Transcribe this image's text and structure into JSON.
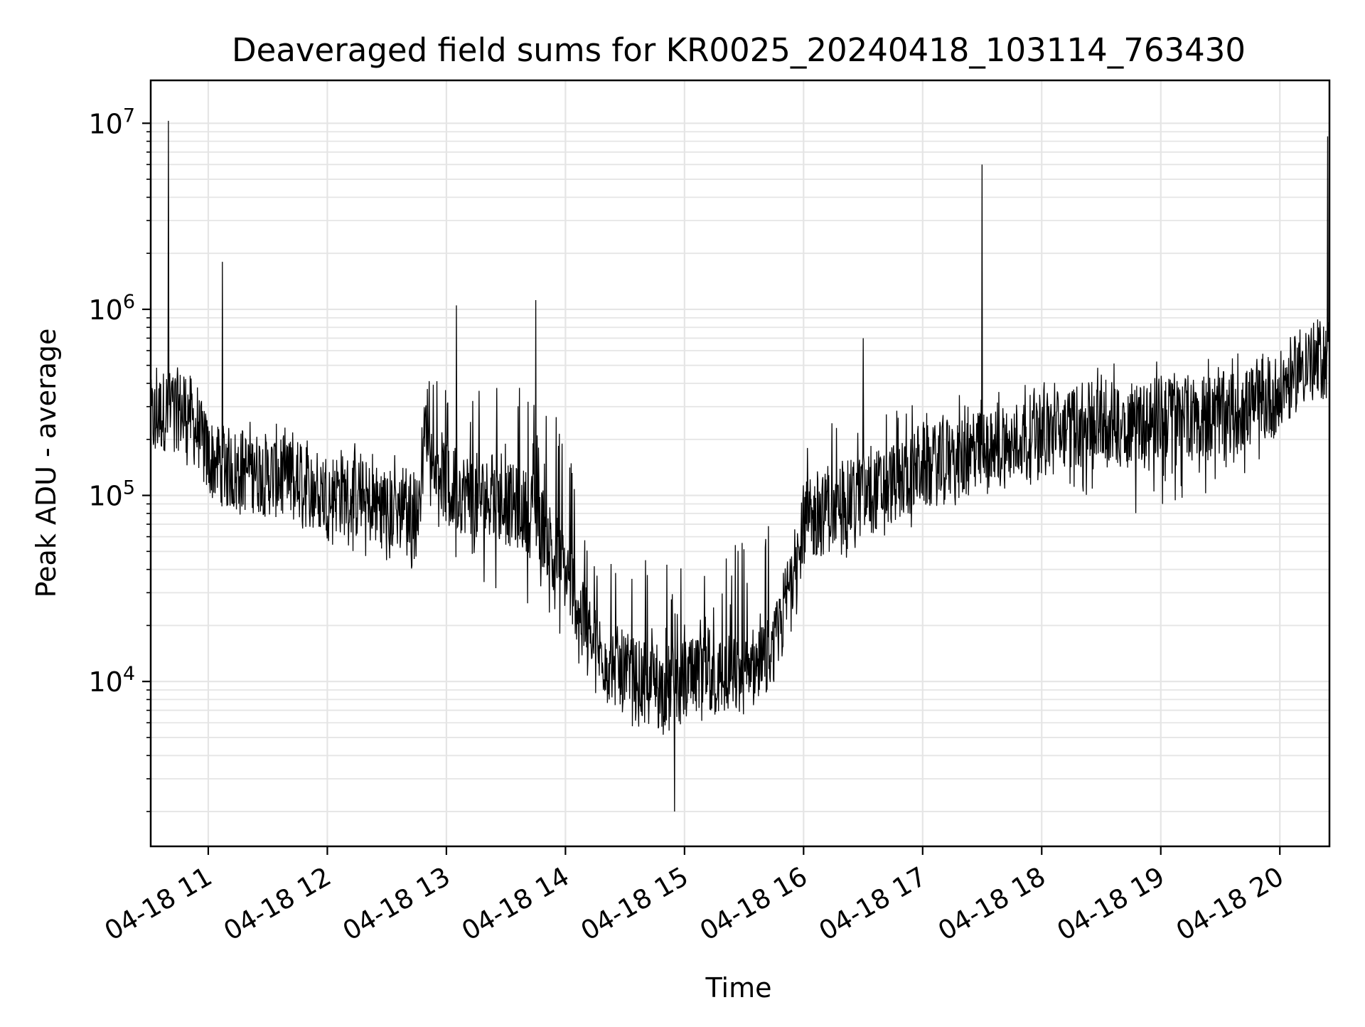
{
  "chart_data": {
    "type": "line",
    "title": "Deaveraged field sums for KR0025_20240418_103114_763430",
    "xlabel": "Time",
    "ylabel": "Peak ADU - average",
    "yscale": "log",
    "ylim": [
      1300,
      17000000
    ],
    "xlim": [
      "04-18 10:31",
      "04-18 20:25"
    ],
    "grid": true,
    "line_color": "#000000",
    "grid_color": "#e5e5e5",
    "x_ticks": [
      {
        "label": "04-18 11",
        "value": "04-18 11:00"
      },
      {
        "label": "04-18 12",
        "value": "04-18 12:00"
      },
      {
        "label": "04-18 13",
        "value": "04-18 13:00"
      },
      {
        "label": "04-18 14",
        "value": "04-18 14:00"
      },
      {
        "label": "04-18 15",
        "value": "04-18 15:00"
      },
      {
        "label": "04-18 16",
        "value": "04-18 16:00"
      },
      {
        "label": "04-18 17",
        "value": "04-18 17:00"
      },
      {
        "label": "04-18 18",
        "value": "04-18 18:00"
      },
      {
        "label": "04-18 19",
        "value": "04-18 19:00"
      },
      {
        "label": "04-18 20",
        "value": "04-18 20:00"
      }
    ],
    "y_ticks": [
      {
        "base": "10",
        "exp": "4",
        "value": 10000
      },
      {
        "base": "10",
        "exp": "5",
        "value": 100000
      },
      {
        "base": "10",
        "exp": "6",
        "value": 1000000
      },
      {
        "base": "10",
        "exp": "7",
        "value": 10000000
      }
    ],
    "series": [
      {
        "x": [
          "04-18 10:31",
          "04-18 10:40",
          "04-18 10:50",
          "04-18 11:00",
          "04-18 11:10",
          "04-18 11:30",
          "04-18 11:50",
          "04-18 12:10",
          "04-18 12:30",
          "04-18 12:45",
          "04-18 12:50",
          "04-18 13:00",
          "04-18 13:15",
          "04-18 13:30",
          "04-18 13:45",
          "04-18 14:00",
          "04-18 14:15",
          "04-18 14:30",
          "04-18 14:45",
          "04-18 15:00",
          "04-18 15:15",
          "04-18 15:30",
          "04-18 15:45",
          "04-18 16:00",
          "04-18 16:20",
          "04-18 16:40",
          "04-18 17:00",
          "04-18 17:20",
          "04-18 17:40",
          "04-18 18:00",
          "04-18 18:20",
          "04-18 18:40",
          "04-18 19:00",
          "04-18 19:20",
          "04-18 19:40",
          "04-18 20:00",
          "04-18 20:10",
          "04-18 20:25"
        ],
        "y": [
          250000,
          300000,
          280000,
          160000,
          140000,
          130000,
          110000,
          100000,
          85000,
          75000,
          250000,
          110000,
          100000,
          90000,
          80000,
          40000,
          15000,
          11000,
          9000,
          10000,
          10500,
          11000,
          14000,
          70000,
          90000,
          110000,
          140000,
          160000,
          180000,
          220000,
          240000,
          250000,
          260000,
          270000,
          280000,
          350000,
          500000,
          550000
        ],
        "envelope_low": [
          120000,
          150000,
          130000,
          90000,
          80000,
          70000,
          60000,
          50000,
          42000,
          38000,
          100000,
          40000,
          35000,
          30000,
          25000,
          15000,
          8000,
          6000,
          5000,
          5500,
          6000,
          6500,
          8000,
          30000,
          45000,
          55000,
          70000,
          90000,
          100000,
          120000,
          90000,
          80000,
          80000,
          100000,
          120000,
          200000,
          300000,
          300000
        ],
        "envelope_high": [
          500000,
          600000,
          500000,
          300000,
          260000,
          250000,
          220000,
          200000,
          180000,
          150000,
          500000,
          450000,
          500000,
          450000,
          400000,
          250000,
          60000,
          50000,
          50000,
          40000,
          50000,
          60000,
          80000,
          250000,
          280000,
          300000,
          320000,
          350000,
          380000,
          450000,
          500000,
          520000,
          550000,
          580000,
          600000,
          700000,
          900000,
          900000
        ],
        "spikes": [
          {
            "x": "04-18 10:40",
            "y": 10300000
          },
          {
            "x": "04-18 11:07",
            "y": 1800000
          },
          {
            "x": "04-18 13:05",
            "y": 1050000
          },
          {
            "x": "04-18 13:45",
            "y": 1120000
          },
          {
            "x": "04-18 16:30",
            "y": 700000
          },
          {
            "x": "04-18 17:30",
            "y": 6000000
          },
          {
            "x": "04-18 20:24",
            "y": 8500000
          },
          {
            "x": "04-18 14:55",
            "y": 2000
          }
        ]
      }
    ]
  }
}
